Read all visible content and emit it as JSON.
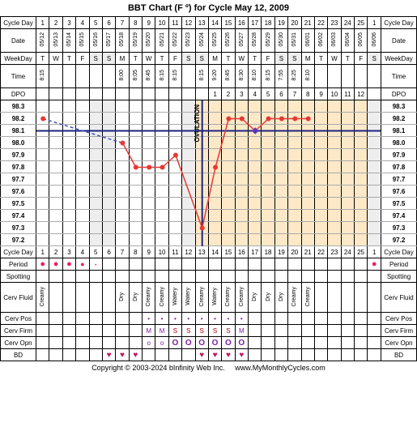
{
  "title": "BBT Chart (F º) for Cycle May 12, 2009",
  "copyright": "Copyright © 2003-2024 bInfinity Web Inc.",
  "website": "www.MyMonthlyCycles.com",
  "rows": {
    "cycleDay": "Cycle Day",
    "date": "Date",
    "weekday": "WeekDay",
    "time": "Time",
    "dpo": "DPO",
    "period": "Period",
    "spotting": "Spotting",
    "cervFluid": "Cerv Fluid",
    "cervPos": "Cerv Pos",
    "cervFirm": "Cerv Firm",
    "cervOpn": "Cerv Opn",
    "bd": "BD"
  },
  "cycleDays": [
    "1",
    "2",
    "3",
    "4",
    "5",
    "6",
    "7",
    "8",
    "9",
    "10",
    "11",
    "12",
    "13",
    "14",
    "15",
    "16",
    "17",
    "18",
    "19",
    "20",
    "21",
    "22",
    "23",
    "24",
    "25",
    "1"
  ],
  "dates": [
    "05/12",
    "05/13",
    "05/14",
    "05/15",
    "05/16",
    "05/17",
    "05/18",
    "05/19",
    "05/20",
    "05/21",
    "05/22",
    "05/23",
    "05/24",
    "05/25",
    "05/26",
    "05/27",
    "05/28",
    "05/29",
    "05/30",
    "05/31",
    "06/01",
    "06/02",
    "06/03",
    "06/04",
    "06/05",
    "06/06"
  ],
  "weekdays": [
    "T",
    "W",
    "T",
    "F",
    "S",
    "S",
    "M",
    "T",
    "W",
    "T",
    "F",
    "S",
    "S",
    "M",
    "T",
    "W",
    "T",
    "F",
    "S",
    "S",
    "M",
    "T",
    "W",
    "T",
    "F",
    "S"
  ],
  "weekendIdx": [
    4,
    5,
    11,
    12,
    18,
    19,
    25
  ],
  "times": [
    "8:15",
    "",
    "",
    "",
    "",
    "",
    "8:00",
    "8:05",
    "8:45",
    "8:15",
    "8:15",
    "",
    "8:15",
    "9:20",
    "8:45",
    "8:30",
    "8:10",
    "8:15",
    "7:55",
    "8:25",
    "8:10",
    "",
    "",
    "",
    "",
    ""
  ],
  "dpo": [
    "",
    "",
    "",
    "",
    "",
    "",
    "",
    "",
    "",
    "",
    "",
    "",
    "",
    "1",
    "2",
    "3",
    "4",
    "5",
    "6",
    "7",
    "8",
    "9",
    "10",
    "11",
    "12",
    ""
  ],
  "tempLabels": [
    "98.3",
    "98.2",
    "98.1",
    "98.0",
    "97.9",
    "97.8",
    "97.7",
    "97.6",
    "97.5",
    "97.4",
    "97.3",
    "97.2"
  ],
  "tempValues": {
    "1": 98.2,
    "7": 98.0,
    "8": 97.8,
    "9": 97.8,
    "10": 97.8,
    "11": 97.9,
    "13": 97.3,
    "14": 97.8,
    "15": 98.2,
    "16": 98.2,
    "17": 98.1,
    "18": 98.2,
    "19": 98.2,
    "20": 98.2,
    "21": 98.2
  },
  "coverline": 98.1,
  "ovulationDay": 13,
  "shadedStart": 13,
  "shadedEnd": 25,
  "period": {
    "1": "dot",
    "2": "dot",
    "3": "dot",
    "4": "small",
    "5": "tiny",
    "26": "dot"
  },
  "cervFluid": [
    "Creamy",
    "",
    "",
    "",
    "",
    "",
    "Dry",
    "Dry",
    "Creamy",
    "Creamy",
    "Watery",
    "Watery",
    "Creamy",
    "Watery",
    "Creamy",
    "Creamy",
    "Dry",
    "Dry",
    "Dry",
    "Creamy",
    "Creamy",
    "",
    "",
    "",
    "",
    ""
  ],
  "cervPos": {
    "9": "•",
    "10": "•",
    "11": "•",
    "12": "•",
    "13": "•",
    "14": "•",
    "15": "•",
    "16": "•"
  },
  "cervFirm": {
    "9": "M",
    "10": "M",
    "11": "S",
    "12": "S",
    "13": "S",
    "14": "S",
    "15": "S",
    "16": "M"
  },
  "cervOpn": {
    "9": "o",
    "10": "o",
    "11": "O",
    "12": "O",
    "13": "O",
    "14": "O",
    "15": "O",
    "16": "O"
  },
  "bd": {
    "6": "♥",
    "7": "♥",
    "8": "♥",
    "13": "♥",
    "14": "♥",
    "15": "♥",
    "16": "♥"
  },
  "colors": {
    "dataLine": "#e53935",
    "dashedLine": "#3f51b5",
    "coverline": "#1a237e",
    "ovulationLine": "#1a237e",
    "shaded": "#fde9c8"
  },
  "chart": {
    "leftMargin": 44,
    "rightMargin": 44,
    "cellWidth": 16.42,
    "tempTop": 0,
    "tempRowHeight": 15
  }
}
